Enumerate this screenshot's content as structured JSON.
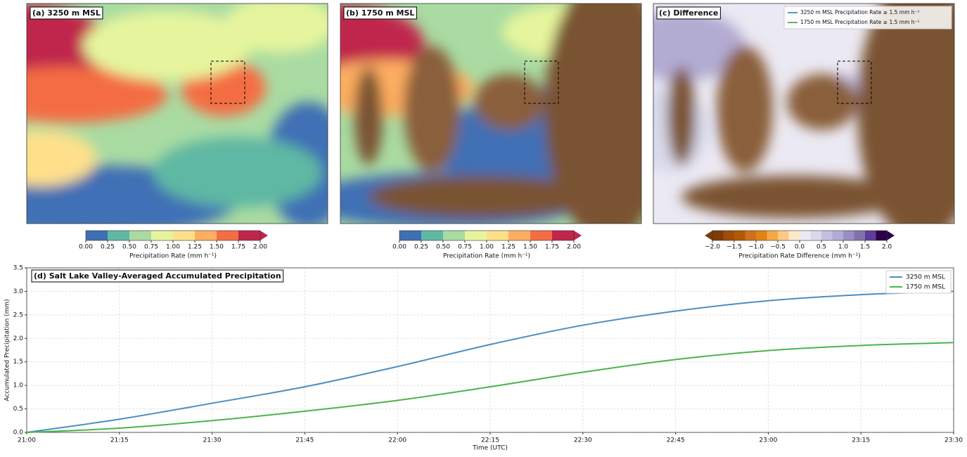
{
  "maps": [
    {
      "title": "(a) 3250 m MSL",
      "colorbar": {
        "label": "Precipitation Rate (mm h⁻¹)",
        "lim": [
          0,
          2
        ],
        "extend": "max",
        "colors": [
          "#3f6fb5",
          "#5fb8a3",
          "#a9dba2",
          "#e6f59d",
          "#fee08b",
          "#fdae61",
          "#f46d43",
          "#c0254b"
        ],
        "ticks": [
          {
            "value": 0,
            "label": "0.00"
          },
          0.25,
          {
            "value": 0.5,
            "label": "0.50"
          },
          0.75,
          {
            "value": 1,
            "label": "1.00"
          },
          1.25,
          {
            "value": 1.5,
            "label": "1.50"
          },
          1.75,
          {
            "value": 2,
            "label": "2.00"
          }
        ]
      }
    },
    {
      "title": "(b) 1750 m MSL",
      "colorbar": {
        "label": "Precipitation Rate (mm h⁻¹)",
        "lim": [
          0,
          2
        ],
        "extend": "max",
        "colors": [
          "#3f6fb5",
          "#5fb8a3",
          "#a9dba2",
          "#e6f59d",
          "#fee08b",
          "#fdae61",
          "#f46d43",
          "#c0254b"
        ],
        "ticks": [
          {
            "value": 0,
            "label": "0.00"
          },
          0.25,
          {
            "value": 0.5,
            "label": "0.50"
          },
          0.75,
          {
            "value": 1,
            "label": "1.00"
          },
          1.25,
          {
            "value": 1.5,
            "label": "1.50"
          },
          1.75,
          {
            "value": 2,
            "label": "2.00"
          }
        ]
      }
    },
    {
      "title": "(c) Difference",
      "colorbar": {
        "label": "Precipitation Rate Difference (mm h⁻¹)",
        "lim": [
          -2,
          2
        ],
        "extend": "both",
        "colors": [
          "#7f3b08",
          "#a04d09",
          "#b35806",
          "#d0701a",
          "#e08214",
          "#f5a945",
          "#fdc986",
          "#fde8c9",
          "#ece9f3",
          "#d8daeb",
          "#c4bfdd",
          "#b2abd2",
          "#9a8ec1",
          "#8073ac",
          "#5e3c99",
          "#2d004b"
        ],
        "ticks": [
          {
            "value": -2,
            "label": "−2.0"
          },
          {
            "value": -1.5,
            "label": "−1.5"
          },
          {
            "value": -1,
            "label": "−1.0"
          },
          {
            "value": -0.5,
            "label": "−0.5"
          },
          {
            "value": 0,
            "label": "0.0"
          },
          0.5,
          {
            "value": 1,
            "label": "1.0"
          },
          1.5,
          {
            "value": 2,
            "label": "2.0"
          }
        ]
      },
      "legend": [
        {
          "name": "3250 m MSL Precipitation Rate ≥ 1.5 mm h⁻¹",
          "color": "#1f77b4"
        },
        {
          "name": "1750 m MSL Precipitation Rate ≥ 1.5 mm h⁻¹",
          "color": "#2ca02c"
        }
      ]
    }
  ],
  "chart_data": {
    "type": "line",
    "title": "(d) Salt Lake Valley-Averaged Accumulated Precipitation",
    "x_label": "Time (UTC)",
    "y_label": "Accumulated Precipitation (mm)",
    "categories": [
      "21:00",
      "21:15",
      "21:30",
      "21:45",
      "22:00",
      "22:15",
      "22:30",
      "22:45",
      "23:00",
      "23:15",
      "23:30"
    ],
    "series": [
      {
        "name": "3250 m MSL",
        "color": "#4a8fc4",
        "values": [
          0,
          0.28,
          0.62,
          0.97,
          1.4,
          1.87,
          2.28,
          2.58,
          2.8,
          2.93,
          3.0
        ]
      },
      {
        "name": "1750 m MSL",
        "color": "#4cb34c",
        "values": [
          0,
          0.09,
          0.25,
          0.45,
          0.68,
          0.97,
          1.28,
          1.55,
          1.74,
          1.85,
          1.91
        ]
      }
    ],
    "ylim": [
      0,
      3.5
    ],
    "yticks": [
      {
        "value": 0,
        "label": "0.0"
      },
      0.5,
      {
        "value": 1,
        "label": "1.0"
      },
      1.5,
      {
        "value": 2,
        "label": "2.0"
      },
      2.5,
      {
        "value": 3,
        "label": "3.0"
      },
      3.5
    ],
    "grid": true,
    "legend": "upper right"
  }
}
